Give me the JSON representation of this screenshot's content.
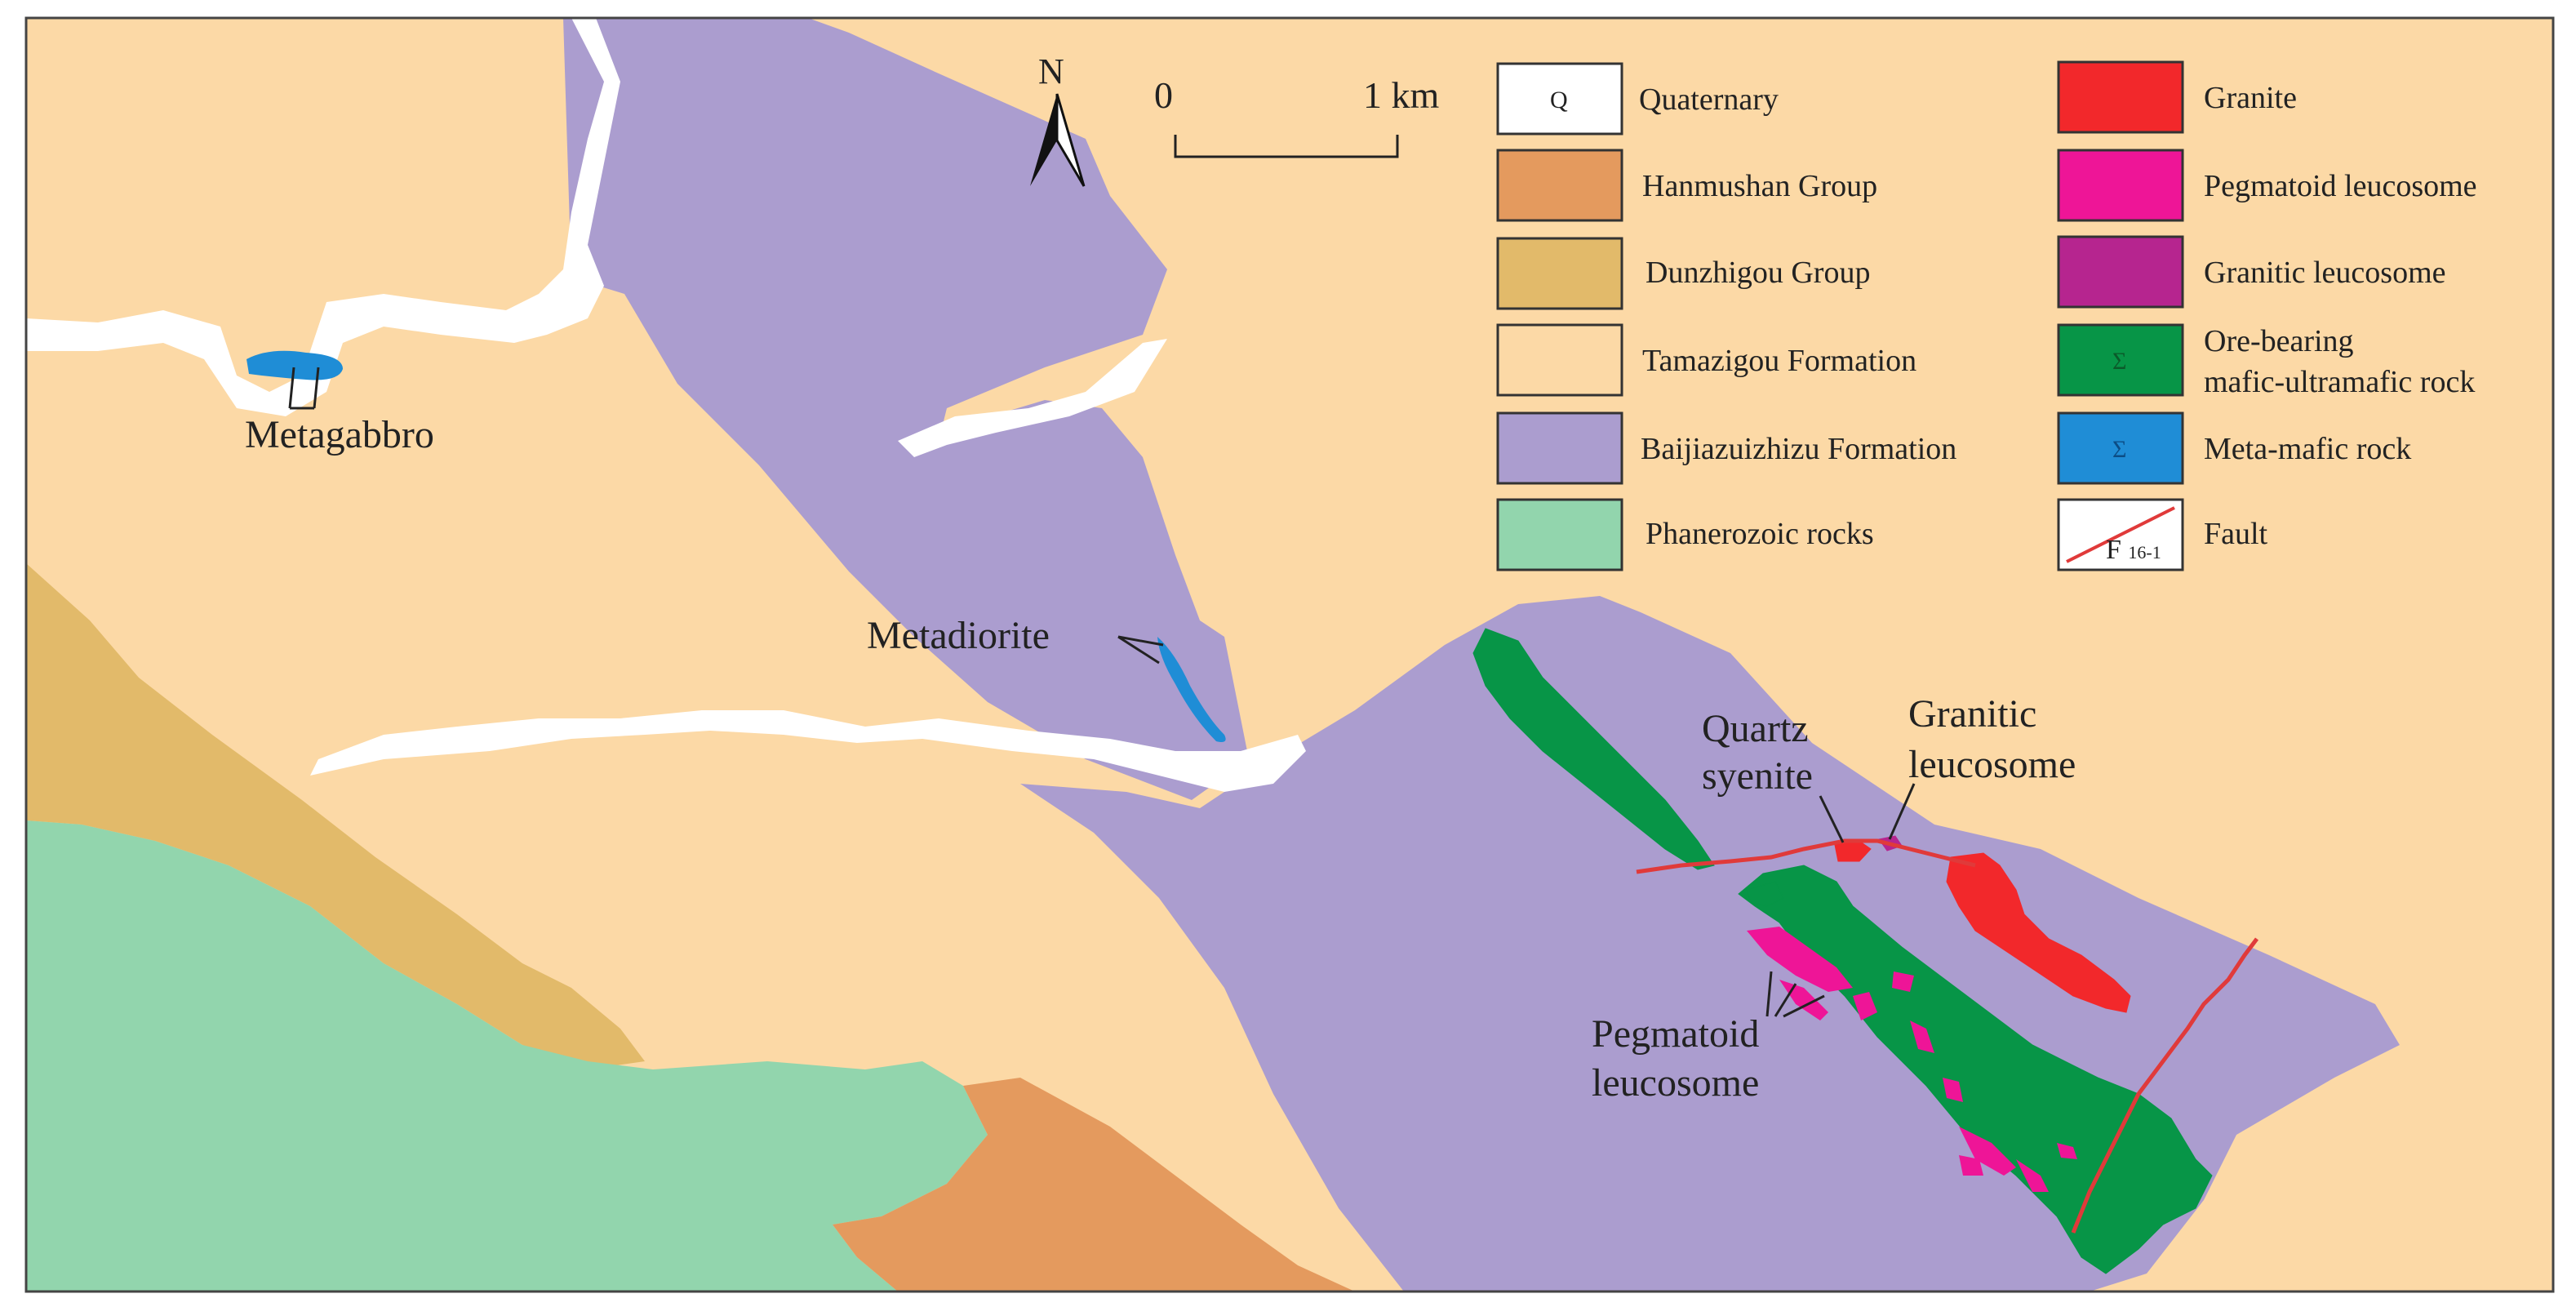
{
  "colors": {
    "quaternary": "#ffffff",
    "hanmushan": "#e49a5e",
    "dunzhigou": "#e2ba6a",
    "tamazigou": "#fcd9a6",
    "baijiazuizhizu": "#ab9dcf",
    "phanerozoic": "#92d5ad",
    "granite": "#f2282b",
    "pegmatoid": "#ee1597",
    "granitic_leucosome": "#b6258f",
    "ore_bearing": "#079547",
    "meta_mafic": "#1f8dd6",
    "fault": "#e03a3a"
  },
  "north_arrow": {
    "label": "N"
  },
  "scale_bar": {
    "start": "0",
    "end": "1 km"
  },
  "legend": {
    "quaternary": {
      "symbol": "Q",
      "label": "Quaternary"
    },
    "hanmushan": {
      "label": "Hanmushan Group"
    },
    "dunzhigou": {
      "label": "Dunzhigou Group"
    },
    "tamazigou": {
      "label": "Tamazigou Formation"
    },
    "baijiazuizhizu": {
      "label": "Baijiazuizhizu Formation"
    },
    "phanerozoic": {
      "label": "Phanerozoic rocks"
    },
    "granite": {
      "label": "Granite"
    },
    "pegmatoid": {
      "label": "Pegmatoid leucosome"
    },
    "granitic_leucosome": {
      "label": "Granitic leucosome"
    },
    "ore_bearing": {
      "symbol": "Σ",
      "label_line1": "Ore-bearing",
      "label_line2": "mafic-ultramafic rock"
    },
    "meta_mafic": {
      "symbol": "Σ",
      "label": "Meta-mafic rock"
    },
    "fault": {
      "symbol_main": "F",
      "symbol_sub": "16-1",
      "label": "Fault"
    }
  },
  "map_labels": {
    "metagabbro": "Metagabbro",
    "metadiorite": "Metadiorite",
    "quartz_syenite_line1": "Quartz",
    "quartz_syenite_line2": "syenite",
    "granitic_leucosome_line1": "Granitic",
    "granitic_leucosome_line2": "leucosome",
    "pegmatoid_line1": "Pegmatoid",
    "pegmatoid_line2": "leucosome"
  }
}
